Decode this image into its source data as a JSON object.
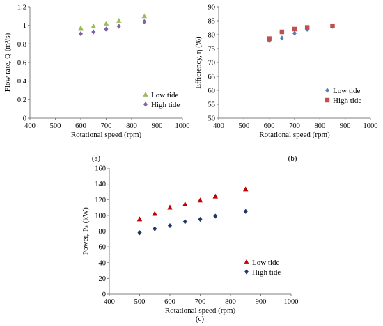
{
  "chart_data": [
    {
      "type": "scatter",
      "panel_label": "(a)",
      "xlabel": "Rotational speed (rpm)",
      "ylabel": "Flow rate, Q (m³/s)",
      "xlim": [
        400,
        1000
      ],
      "ylim": [
        0,
        1.2
      ],
      "xticks": [
        400,
        500,
        600,
        700,
        800,
        900,
        1000
      ],
      "yticks": [
        0,
        0.2,
        0.4,
        0.6,
        0.8,
        1,
        1.2
      ],
      "xtick_labels": [
        "400",
        "500",
        "600",
        "700",
        "800",
        "900",
        "1000"
      ],
      "ytick_labels": [
        "0",
        "0.2",
        "0.4",
        "0.6",
        "0.8",
        "1",
        "1.2"
      ],
      "grid": false,
      "legend_position": "bottom-right",
      "series": [
        {
          "name": "Low tide",
          "marker": "triangle",
          "color": "#9bbb59",
          "x": [
            600,
            650,
            700,
            750,
            850
          ],
          "y": [
            0.97,
            0.99,
            1.02,
            1.05,
            1.1
          ]
        },
        {
          "name": "High tide",
          "marker": "diamond",
          "color": "#8064a2",
          "x": [
            600,
            650,
            700,
            750,
            850
          ],
          "y": [
            0.91,
            0.93,
            0.96,
            0.99,
            1.04
          ]
        }
      ]
    },
    {
      "type": "scatter",
      "panel_label": "(b)",
      "xlabel": "Rotational speed (rpm)",
      "ylabel": "Efficiency, η (%)",
      "xlim": [
        400,
        1000
      ],
      "ylim": [
        50,
        90
      ],
      "xticks": [
        400,
        500,
        600,
        700,
        800,
        900,
        1000
      ],
      "yticks": [
        50,
        55,
        60,
        65,
        70,
        75,
        80,
        85,
        90
      ],
      "xtick_labels": [
        "400",
        "500",
        "600",
        "700",
        "800",
        "900",
        "1000"
      ],
      "ytick_labels": [
        "50",
        "55",
        "60",
        "65",
        "70",
        "75",
        "80",
        "85",
        "90"
      ],
      "grid": false,
      "legend_position": "bottom-right",
      "series": [
        {
          "name": "Low tide",
          "marker": "diamond",
          "color": "#4f81bd",
          "x": [
            600,
            650,
            700,
            750,
            850
          ],
          "y": [
            77.8,
            78.8,
            80.5,
            81.9,
            83.0
          ]
        },
        {
          "name": "High tide",
          "marker": "square",
          "color": "#c0504d",
          "x": [
            600,
            650,
            700,
            750,
            850
          ],
          "y": [
            78.6,
            81.0,
            82.0,
            82.6,
            83.2
          ]
        }
      ]
    },
    {
      "type": "scatter",
      "panel_label": "(c)",
      "xlabel": "Rotational speed (rpm)",
      "ylabel": "Power, Pₛ (kW)",
      "xlim": [
        400,
        1000
      ],
      "ylim": [
        0,
        160
      ],
      "xticks": [
        400,
        500,
        600,
        700,
        800,
        900,
        1000
      ],
      "yticks": [
        0,
        20,
        40,
        60,
        80,
        100,
        120,
        140,
        160
      ],
      "xtick_labels": [
        "400",
        "500",
        "600",
        "700",
        "800",
        "900",
        "1000"
      ],
      "ytick_labels": [
        "0",
        "20",
        "40",
        "60",
        "80",
        "100",
        "120",
        "140",
        "160"
      ],
      "grid": false,
      "legend_position": "bottom-right",
      "series": [
        {
          "name": "Low tide",
          "marker": "triangle",
          "color": "#c00000",
          "x": [
            500,
            550,
            600,
            650,
            700,
            750,
            850
          ],
          "y": [
            95,
            102,
            110,
            114,
            119,
            124,
            133
          ]
        },
        {
          "name": "High tide",
          "marker": "diamond",
          "color": "#1f3864",
          "x": [
            500,
            550,
            600,
            650,
            700,
            750,
            850
          ],
          "y": [
            78,
            83,
            87,
            92,
            95,
            99,
            105
          ]
        }
      ]
    }
  ]
}
